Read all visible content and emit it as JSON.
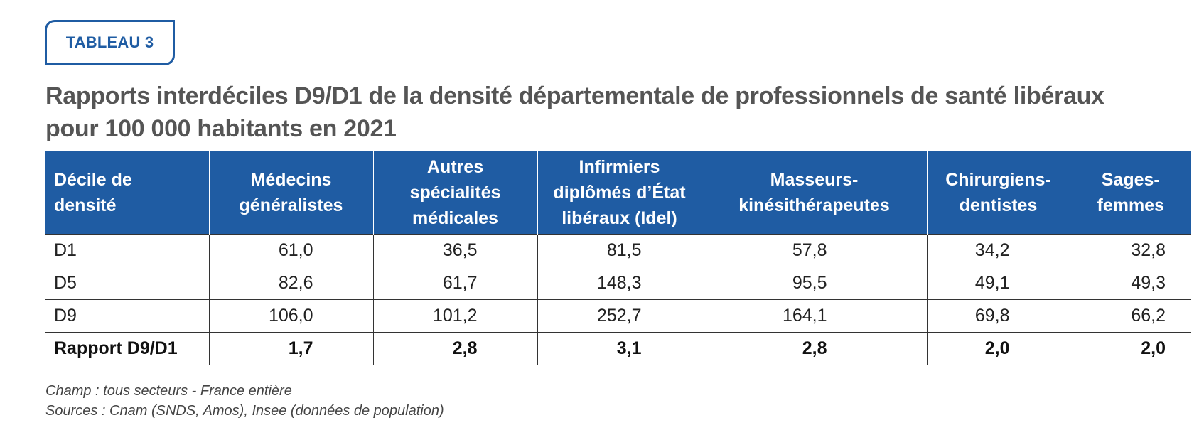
{
  "badge": "TABLEAU 3",
  "title": {
    "line1": "Rapports interdéciles D9/D1 de la densité départementale de professionnels de santé libéraux",
    "line2": "pour 100 000 habitants en 2021"
  },
  "table": {
    "headers": [
      [
        "Décile de",
        "densité"
      ],
      [
        "Médecins",
        "généralistes"
      ],
      [
        "Autres",
        "spécialités",
        "médicales"
      ],
      [
        "Infirmiers",
        "diplômés d’État",
        "libéraux (Idel)"
      ],
      [
        "Masseurs-",
        "kinésithérapeutes"
      ],
      [
        "Chirurgiens-",
        "dentistes"
      ],
      [
        "Sages-",
        "femmes"
      ]
    ],
    "rows": [
      [
        "D1",
        "61,0",
        "36,5",
        "81,5",
        "57,8",
        "34,2",
        "32,8"
      ],
      [
        "D5",
        "82,6",
        "61,7",
        "148,3",
        "95,5",
        "49,1",
        "49,3"
      ],
      [
        "D9",
        "106,0",
        "101,2",
        "252,7",
        "164,1",
        "69,8",
        "66,2"
      ],
      [
        "Rapport D9/D1",
        "1,7",
        "2,8",
        "3,1",
        "2,8",
        "2,0",
        "2,0"
      ]
    ]
  },
  "notes": {
    "champ": "Champ :  tous secteurs - France entière",
    "sources": "Sources : Cnam (SNDS, Amos), Insee (données de population)"
  },
  "colors": {
    "header_bg": "#1f5ca3",
    "badge_border": "#1f5ca3",
    "title": "#555555"
  }
}
